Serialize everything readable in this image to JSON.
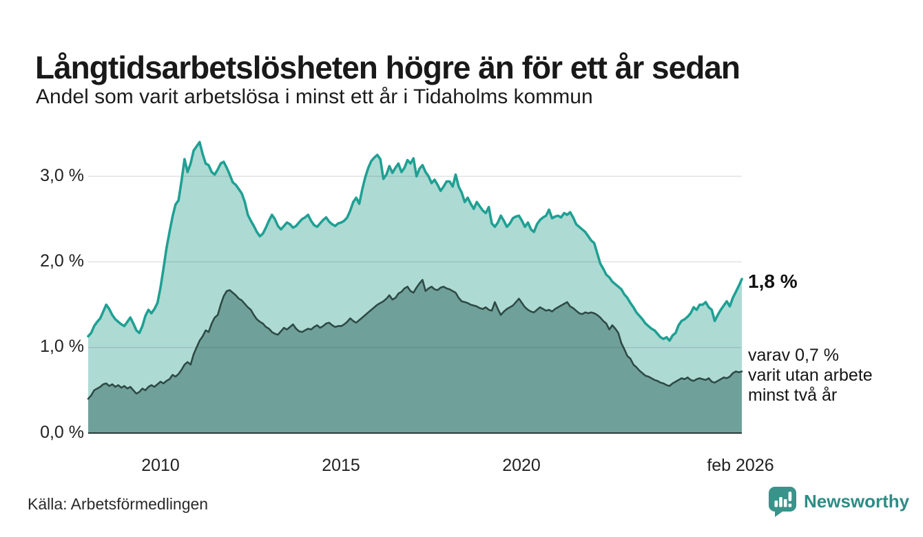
{
  "header": {
    "title": "Långtidsarbetslösheten högre än för ett år sedan",
    "subtitle": "Andel som varit arbetslösa i minst ett år i Tidaholms kommun"
  },
  "annotations": {
    "latest_value": "1,8 %",
    "detail_lines": [
      "varav 0,7 %",
      "varit utan arbete",
      "minst två år"
    ]
  },
  "footer": {
    "source": "Källa: Arbetsförmedlingen",
    "brand": "Newsworthy"
  },
  "colors": {
    "series1_line": "#1fa093",
    "series1_fill": "#aedad4",
    "series2_line": "#2e4a45",
    "series2_fill": "#6fa19a",
    "gridline": "rgba(30,30,30,0.13)",
    "baseline": "#2b3a37",
    "brand_teal": "#3a938b"
  },
  "chart_data": {
    "type": "area",
    "title": "Långtidsarbetslösheten högre än för ett år sedan",
    "subtitle": "Andel som varit arbetslösa i minst ett år i Tidaholms kommun",
    "x_start": 2008.0,
    "x_end": 2026.083,
    "points_per_year": 12,
    "ylim": [
      0,
      3.5
    ],
    "grid": "horizontal",
    "y_ticks": [
      {
        "v": 0,
        "label": "0,0 %"
      },
      {
        "v": 1,
        "label": "1,0 %"
      },
      {
        "v": 2,
        "label": "2,0 %"
      },
      {
        "v": 3,
        "label": "3,0 %"
      }
    ],
    "x_ticks": [
      {
        "x": 2010,
        "label": "2010"
      },
      {
        "x": 2015,
        "label": "2015"
      },
      {
        "x": 2020,
        "label": "2020"
      },
      {
        "x": 2026.083,
        "label": "feb 2026"
      }
    ],
    "series": [
      {
        "name": "Arbetslösa minst ett år",
        "end_label": "1,8 %",
        "line_color": "#1fa093",
        "fill_color": "#aedad4",
        "values": [
          1.13,
          1.17,
          1.25,
          1.3,
          1.34,
          1.42,
          1.5,
          1.45,
          1.38,
          1.33,
          1.3,
          1.27,
          1.25,
          1.3,
          1.35,
          1.28,
          1.2,
          1.17,
          1.25,
          1.37,
          1.44,
          1.4,
          1.45,
          1.52,
          1.7,
          1.92,
          2.16,
          2.35,
          2.53,
          2.67,
          2.72,
          2.95,
          3.2,
          3.05,
          3.15,
          3.3,
          3.35,
          3.4,
          3.26,
          3.15,
          3.13,
          3.05,
          3.02,
          3.08,
          3.15,
          3.17,
          3.1,
          3.02,
          2.93,
          2.9,
          2.85,
          2.8,
          2.7,
          2.55,
          2.48,
          2.42,
          2.35,
          2.3,
          2.33,
          2.4,
          2.48,
          2.55,
          2.5,
          2.42,
          2.38,
          2.42,
          2.46,
          2.44,
          2.4,
          2.42,
          2.46,
          2.5,
          2.52,
          2.55,
          2.48,
          2.43,
          2.41,
          2.45,
          2.49,
          2.52,
          2.47,
          2.44,
          2.42,
          2.45,
          2.46,
          2.48,
          2.52,
          2.6,
          2.7,
          2.75,
          2.68,
          2.85,
          2.99,
          3.1,
          3.18,
          3.22,
          3.25,
          3.2,
          2.97,
          3.02,
          3.12,
          3.04,
          3.1,
          3.15,
          3.05,
          3.1,
          3.19,
          3.15,
          3.21,
          3.0,
          3.09,
          3.13,
          3.05,
          3.0,
          2.92,
          2.96,
          2.9,
          2.83,
          2.88,
          2.94,
          2.94,
          2.88,
          3.02,
          2.88,
          2.81,
          2.7,
          2.75,
          2.68,
          2.62,
          2.7,
          2.65,
          2.6,
          2.57,
          2.64,
          2.45,
          2.41,
          2.46,
          2.54,
          2.48,
          2.41,
          2.45,
          2.51,
          2.53,
          2.54,
          2.48,
          2.41,
          2.46,
          2.38,
          2.35,
          2.44,
          2.49,
          2.52,
          2.54,
          2.61,
          2.51,
          2.53,
          2.54,
          2.52,
          2.57,
          2.55,
          2.58,
          2.52,
          2.44,
          2.41,
          2.38,
          2.35,
          2.3,
          2.25,
          2.22,
          2.1,
          1.98,
          1.92,
          1.85,
          1.82,
          1.77,
          1.74,
          1.71,
          1.68,
          1.62,
          1.58,
          1.52,
          1.47,
          1.41,
          1.37,
          1.33,
          1.28,
          1.25,
          1.22,
          1.2,
          1.16,
          1.12,
          1.1,
          1.12,
          1.08,
          1.14,
          1.17,
          1.26,
          1.31,
          1.33,
          1.36,
          1.4,
          1.47,
          1.44,
          1.5,
          1.5,
          1.53,
          1.47,
          1.44,
          1.31,
          1.38,
          1.44,
          1.49,
          1.54,
          1.48,
          1.58,
          1.65,
          1.72,
          1.8
        ]
      },
      {
        "name": "Arbetslösa minst två år",
        "end_label": "0,7 %",
        "line_color": "#2e4a45",
        "fill_color": "#6fa19a",
        "values": [
          0.4,
          0.44,
          0.5,
          0.52,
          0.54,
          0.57,
          0.58,
          0.55,
          0.57,
          0.54,
          0.56,
          0.53,
          0.55,
          0.52,
          0.54,
          0.5,
          0.46,
          0.48,
          0.52,
          0.5,
          0.54,
          0.56,
          0.54,
          0.57,
          0.6,
          0.58,
          0.61,
          0.63,
          0.68,
          0.66,
          0.69,
          0.74,
          0.8,
          0.83,
          0.8,
          0.92,
          1.0,
          1.08,
          1.13,
          1.2,
          1.18,
          1.28,
          1.35,
          1.38,
          1.5,
          1.6,
          1.66,
          1.67,
          1.64,
          1.61,
          1.57,
          1.55,
          1.51,
          1.47,
          1.44,
          1.38,
          1.33,
          1.3,
          1.28,
          1.24,
          1.22,
          1.18,
          1.16,
          1.15,
          1.19,
          1.23,
          1.21,
          1.24,
          1.27,
          1.22,
          1.19,
          1.18,
          1.2,
          1.22,
          1.21,
          1.24,
          1.26,
          1.23,
          1.25,
          1.28,
          1.29,
          1.26,
          1.24,
          1.25,
          1.25,
          1.27,
          1.3,
          1.34,
          1.31,
          1.29,
          1.32,
          1.35,
          1.38,
          1.41,
          1.44,
          1.47,
          1.5,
          1.52,
          1.54,
          1.57,
          1.61,
          1.56,
          1.58,
          1.63,
          1.65,
          1.69,
          1.71,
          1.66,
          1.64,
          1.7,
          1.75,
          1.79,
          1.66,
          1.69,
          1.71,
          1.68,
          1.67,
          1.7,
          1.71,
          1.69,
          1.68,
          1.66,
          1.64,
          1.58,
          1.54,
          1.53,
          1.52,
          1.5,
          1.49,
          1.48,
          1.46,
          1.45,
          1.47,
          1.44,
          1.43,
          1.53,
          1.45,
          1.38,
          1.42,
          1.45,
          1.47,
          1.49,
          1.53,
          1.57,
          1.52,
          1.47,
          1.44,
          1.42,
          1.41,
          1.44,
          1.47,
          1.45,
          1.43,
          1.44,
          1.42,
          1.45,
          1.47,
          1.49,
          1.51,
          1.53,
          1.48,
          1.46,
          1.43,
          1.4,
          1.39,
          1.41,
          1.4,
          1.41,
          1.4,
          1.38,
          1.35,
          1.31,
          1.28,
          1.21,
          1.26,
          1.22,
          1.17,
          1.05,
          0.98,
          0.9,
          0.87,
          0.8,
          0.77,
          0.73,
          0.7,
          0.67,
          0.66,
          0.64,
          0.62,
          0.61,
          0.59,
          0.58,
          0.56,
          0.55,
          0.58,
          0.6,
          0.62,
          0.64,
          0.63,
          0.65,
          0.62,
          0.61,
          0.63,
          0.64,
          0.63,
          0.62,
          0.64,
          0.6,
          0.59,
          0.61,
          0.63,
          0.65,
          0.64,
          0.66,
          0.7,
          0.72,
          0.71,
          0.72
        ]
      }
    ]
  }
}
